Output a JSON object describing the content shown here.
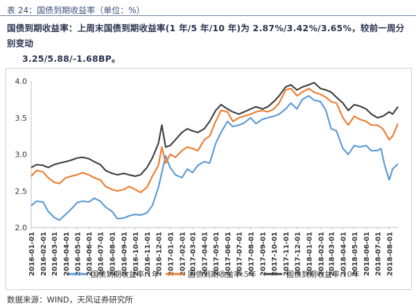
{
  "figure_label": "表 24：国债到期收益率（单位：%）",
  "summary": {
    "line1": "国债到期收益率：上周末国债到期收益率(1 年/5 年/10 年)为 2.87%/3.42%/3.65%，较前一周分别变动",
    "line2": "3.25/5.88/-1.68BP。"
  },
  "source": "数据来源：WIND，天风证券研究所",
  "chart_data": {
    "type": "line",
    "xlabel": "",
    "ylabel": "",
    "ylim": [
      2.0,
      4.0
    ],
    "yticks": [
      "2.0",
      "2.5",
      "3.0",
      "3.5",
      "4.0"
    ],
    "xticks": [
      "2016-01-01",
      "2016-02-01",
      "2016-03-01",
      "2016-04-01",
      "2016-05-01",
      "2016-06-01",
      "2016-07-01",
      "2016-08-01",
      "2016-09-01",
      "2016-10-01",
      "2016-11-01",
      "2016-12-01",
      "2017-01-01",
      "2017-02-01",
      "2017-03-01",
      "2017-04-01",
      "2017-05-01",
      "2017-06-01",
      "2017-07-01",
      "2017-08-01",
      "2017-09-01",
      "2017-10-01",
      "2017-11-01",
      "2017-12-01",
      "2018-01-01",
      "2018-02-01",
      "2018-03-01",
      "2018-04-01",
      "2018-05-01",
      "2018-06-01",
      "2018-07-01",
      "2018-08-01"
    ],
    "x_end": "2018-08-24",
    "legend_position": "bottom",
    "colors": {
      "y1": "#5b9bd5",
      "y5": "#ed7d31",
      "y10": "#404040"
    },
    "series": [
      {
        "name": "国债到期收益率:1年",
        "key": "y1",
        "points": [
          [
            "2016-01-01",
            2.3
          ],
          [
            "2016-01-15",
            2.36
          ],
          [
            "2016-02-01",
            2.35
          ],
          [
            "2016-02-15",
            2.22
          ],
          [
            "2016-03-01",
            2.14
          ],
          [
            "2016-03-15",
            2.1
          ],
          [
            "2016-04-01",
            2.18
          ],
          [
            "2016-04-15",
            2.25
          ],
          [
            "2016-05-01",
            2.34
          ],
          [
            "2016-05-15",
            2.36
          ],
          [
            "2016-06-01",
            2.35
          ],
          [
            "2016-06-15",
            2.4
          ],
          [
            "2016-07-01",
            2.36
          ],
          [
            "2016-07-15",
            2.28
          ],
          [
            "2016-08-01",
            2.22
          ],
          [
            "2016-08-15",
            2.12
          ],
          [
            "2016-09-01",
            2.13
          ],
          [
            "2016-09-15",
            2.16
          ],
          [
            "2016-10-01",
            2.18
          ],
          [
            "2016-10-15",
            2.17
          ],
          [
            "2016-11-01",
            2.2
          ],
          [
            "2016-11-15",
            2.3
          ],
          [
            "2016-12-01",
            2.55
          ],
          [
            "2016-12-10",
            2.75
          ],
          [
            "2016-12-20",
            2.98
          ],
          [
            "2017-01-01",
            2.82
          ],
          [
            "2017-01-15",
            2.72
          ],
          [
            "2017-02-01",
            2.68
          ],
          [
            "2017-02-15",
            2.8
          ],
          [
            "2017-03-01",
            2.75
          ],
          [
            "2017-03-15",
            2.85
          ],
          [
            "2017-04-01",
            2.9
          ],
          [
            "2017-04-15",
            2.88
          ],
          [
            "2017-05-01",
            3.15
          ],
          [
            "2017-05-15",
            3.3
          ],
          [
            "2017-06-01",
            3.45
          ],
          [
            "2017-06-15",
            3.38
          ],
          [
            "2017-07-01",
            3.4
          ],
          [
            "2017-07-15",
            3.43
          ],
          [
            "2017-08-01",
            3.5
          ],
          [
            "2017-08-15",
            3.42
          ],
          [
            "2017-09-01",
            3.48
          ],
          [
            "2017-09-15",
            3.5
          ],
          [
            "2017-10-01",
            3.52
          ],
          [
            "2017-10-15",
            3.55
          ],
          [
            "2017-11-01",
            3.62
          ],
          [
            "2017-11-15",
            3.7
          ],
          [
            "2017-12-01",
            3.62
          ],
          [
            "2017-12-15",
            3.75
          ],
          [
            "2018-01-01",
            3.8
          ],
          [
            "2018-01-15",
            3.74
          ],
          [
            "2018-02-01",
            3.72
          ],
          [
            "2018-02-15",
            3.6
          ],
          [
            "2018-03-01",
            3.35
          ],
          [
            "2018-03-15",
            3.32
          ],
          [
            "2018-04-01",
            3.08
          ],
          [
            "2018-04-15",
            3.0
          ],
          [
            "2018-05-01",
            3.12
          ],
          [
            "2018-05-15",
            3.1
          ],
          [
            "2018-06-01",
            3.12
          ],
          [
            "2018-06-15",
            3.05
          ],
          [
            "2018-07-01",
            3.05
          ],
          [
            "2018-07-10",
            3.08
          ],
          [
            "2018-07-20",
            2.85
          ],
          [
            "2018-08-01",
            2.65
          ],
          [
            "2018-08-10",
            2.8
          ],
          [
            "2018-08-24",
            2.87
          ]
        ]
      },
      {
        "name": "国债到期收益率:5年",
        "key": "y5",
        "points": [
          [
            "2016-01-01",
            2.7
          ],
          [
            "2016-01-15",
            2.78
          ],
          [
            "2016-02-01",
            2.76
          ],
          [
            "2016-02-15",
            2.68
          ],
          [
            "2016-03-01",
            2.62
          ],
          [
            "2016-03-15",
            2.6
          ],
          [
            "2016-04-01",
            2.68
          ],
          [
            "2016-04-15",
            2.7
          ],
          [
            "2016-05-01",
            2.72
          ],
          [
            "2016-05-15",
            2.75
          ],
          [
            "2016-06-01",
            2.72
          ],
          [
            "2016-06-15",
            2.68
          ],
          [
            "2016-07-01",
            2.65
          ],
          [
            "2016-07-15",
            2.56
          ],
          [
            "2016-08-01",
            2.52
          ],
          [
            "2016-08-15",
            2.5
          ],
          [
            "2016-09-01",
            2.52
          ],
          [
            "2016-09-15",
            2.56
          ],
          [
            "2016-10-01",
            2.52
          ],
          [
            "2016-10-15",
            2.48
          ],
          [
            "2016-11-01",
            2.55
          ],
          [
            "2016-11-15",
            2.7
          ],
          [
            "2016-12-01",
            2.85
          ],
          [
            "2016-12-10",
            3.1
          ],
          [
            "2016-12-20",
            2.88
          ],
          [
            "2017-01-01",
            3.0
          ],
          [
            "2017-01-15",
            2.96
          ],
          [
            "2017-02-01",
            3.05
          ],
          [
            "2017-02-15",
            3.1
          ],
          [
            "2017-03-01",
            3.08
          ],
          [
            "2017-03-15",
            3.05
          ],
          [
            "2017-04-01",
            3.2
          ],
          [
            "2017-04-15",
            3.25
          ],
          [
            "2017-05-01",
            3.45
          ],
          [
            "2017-05-15",
            3.6
          ],
          [
            "2017-06-01",
            3.58
          ],
          [
            "2017-06-15",
            3.45
          ],
          [
            "2017-07-01",
            3.5
          ],
          [
            "2017-07-15",
            3.52
          ],
          [
            "2017-08-01",
            3.55
          ],
          [
            "2017-08-15",
            3.58
          ],
          [
            "2017-09-01",
            3.6
          ],
          [
            "2017-09-15",
            3.58
          ],
          [
            "2017-10-01",
            3.62
          ],
          [
            "2017-10-15",
            3.7
          ],
          [
            "2017-11-01",
            3.88
          ],
          [
            "2017-11-15",
            3.9
          ],
          [
            "2017-12-01",
            3.8
          ],
          [
            "2017-12-15",
            3.85
          ],
          [
            "2018-01-01",
            3.9
          ],
          [
            "2018-01-15",
            3.85
          ],
          [
            "2018-02-01",
            3.82
          ],
          [
            "2018-02-15",
            3.78
          ],
          [
            "2018-03-01",
            3.72
          ],
          [
            "2018-03-15",
            3.7
          ],
          [
            "2018-04-01",
            3.5
          ],
          [
            "2018-04-15",
            3.4
          ],
          [
            "2018-05-01",
            3.52
          ],
          [
            "2018-05-15",
            3.48
          ],
          [
            "2018-06-01",
            3.45
          ],
          [
            "2018-06-15",
            3.4
          ],
          [
            "2018-07-01",
            3.4
          ],
          [
            "2018-07-15",
            3.35
          ],
          [
            "2018-08-01",
            3.2
          ],
          [
            "2018-08-10",
            3.25
          ],
          [
            "2018-08-24",
            3.42
          ]
        ]
      },
      {
        "name": "国债到期收益率:10年",
        "key": "y10",
        "points": [
          [
            "2016-01-01",
            2.82
          ],
          [
            "2016-01-15",
            2.86
          ],
          [
            "2016-02-01",
            2.85
          ],
          [
            "2016-02-15",
            2.82
          ],
          [
            "2016-03-01",
            2.86
          ],
          [
            "2016-03-15",
            2.88
          ],
          [
            "2016-04-01",
            2.9
          ],
          [
            "2016-04-15",
            2.92
          ],
          [
            "2016-05-01",
            2.95
          ],
          [
            "2016-05-15",
            2.96
          ],
          [
            "2016-06-01",
            2.94
          ],
          [
            "2016-06-15",
            2.9
          ],
          [
            "2016-07-01",
            2.86
          ],
          [
            "2016-07-15",
            2.78
          ],
          [
            "2016-08-01",
            2.74
          ],
          [
            "2016-08-15",
            2.72
          ],
          [
            "2016-09-01",
            2.74
          ],
          [
            "2016-09-15",
            2.72
          ],
          [
            "2016-10-01",
            2.7
          ],
          [
            "2016-10-15",
            2.72
          ],
          [
            "2016-11-01",
            2.82
          ],
          [
            "2016-11-15",
            2.95
          ],
          [
            "2016-12-01",
            3.15
          ],
          [
            "2016-12-10",
            3.4
          ],
          [
            "2016-12-20",
            3.1
          ],
          [
            "2017-01-01",
            3.12
          ],
          [
            "2017-01-15",
            3.2
          ],
          [
            "2017-02-01",
            3.3
          ],
          [
            "2017-02-15",
            3.35
          ],
          [
            "2017-03-01",
            3.32
          ],
          [
            "2017-03-15",
            3.3
          ],
          [
            "2017-04-01",
            3.35
          ],
          [
            "2017-04-15",
            3.45
          ],
          [
            "2017-05-01",
            3.6
          ],
          [
            "2017-05-15",
            3.68
          ],
          [
            "2017-06-01",
            3.62
          ],
          [
            "2017-06-15",
            3.58
          ],
          [
            "2017-07-01",
            3.55
          ],
          [
            "2017-07-15",
            3.58
          ],
          [
            "2017-08-01",
            3.62
          ],
          [
            "2017-08-15",
            3.65
          ],
          [
            "2017-09-01",
            3.62
          ],
          [
            "2017-09-15",
            3.65
          ],
          [
            "2017-10-01",
            3.72
          ],
          [
            "2017-10-15",
            3.8
          ],
          [
            "2017-11-01",
            3.92
          ],
          [
            "2017-11-15",
            3.95
          ],
          [
            "2017-12-01",
            3.88
          ],
          [
            "2017-12-15",
            3.92
          ],
          [
            "2018-01-01",
            3.95
          ],
          [
            "2018-01-15",
            3.98
          ],
          [
            "2018-02-01",
            3.9
          ],
          [
            "2018-02-15",
            3.88
          ],
          [
            "2018-03-01",
            3.85
          ],
          [
            "2018-03-15",
            3.78
          ],
          [
            "2018-04-01",
            3.7
          ],
          [
            "2018-04-15",
            3.6
          ],
          [
            "2018-05-01",
            3.68
          ],
          [
            "2018-05-15",
            3.66
          ],
          [
            "2018-06-01",
            3.62
          ],
          [
            "2018-06-15",
            3.55
          ],
          [
            "2018-07-01",
            3.5
          ],
          [
            "2018-07-15",
            3.52
          ],
          [
            "2018-08-01",
            3.58
          ],
          [
            "2018-08-10",
            3.55
          ],
          [
            "2018-08-24",
            3.65
          ]
        ]
      }
    ]
  }
}
